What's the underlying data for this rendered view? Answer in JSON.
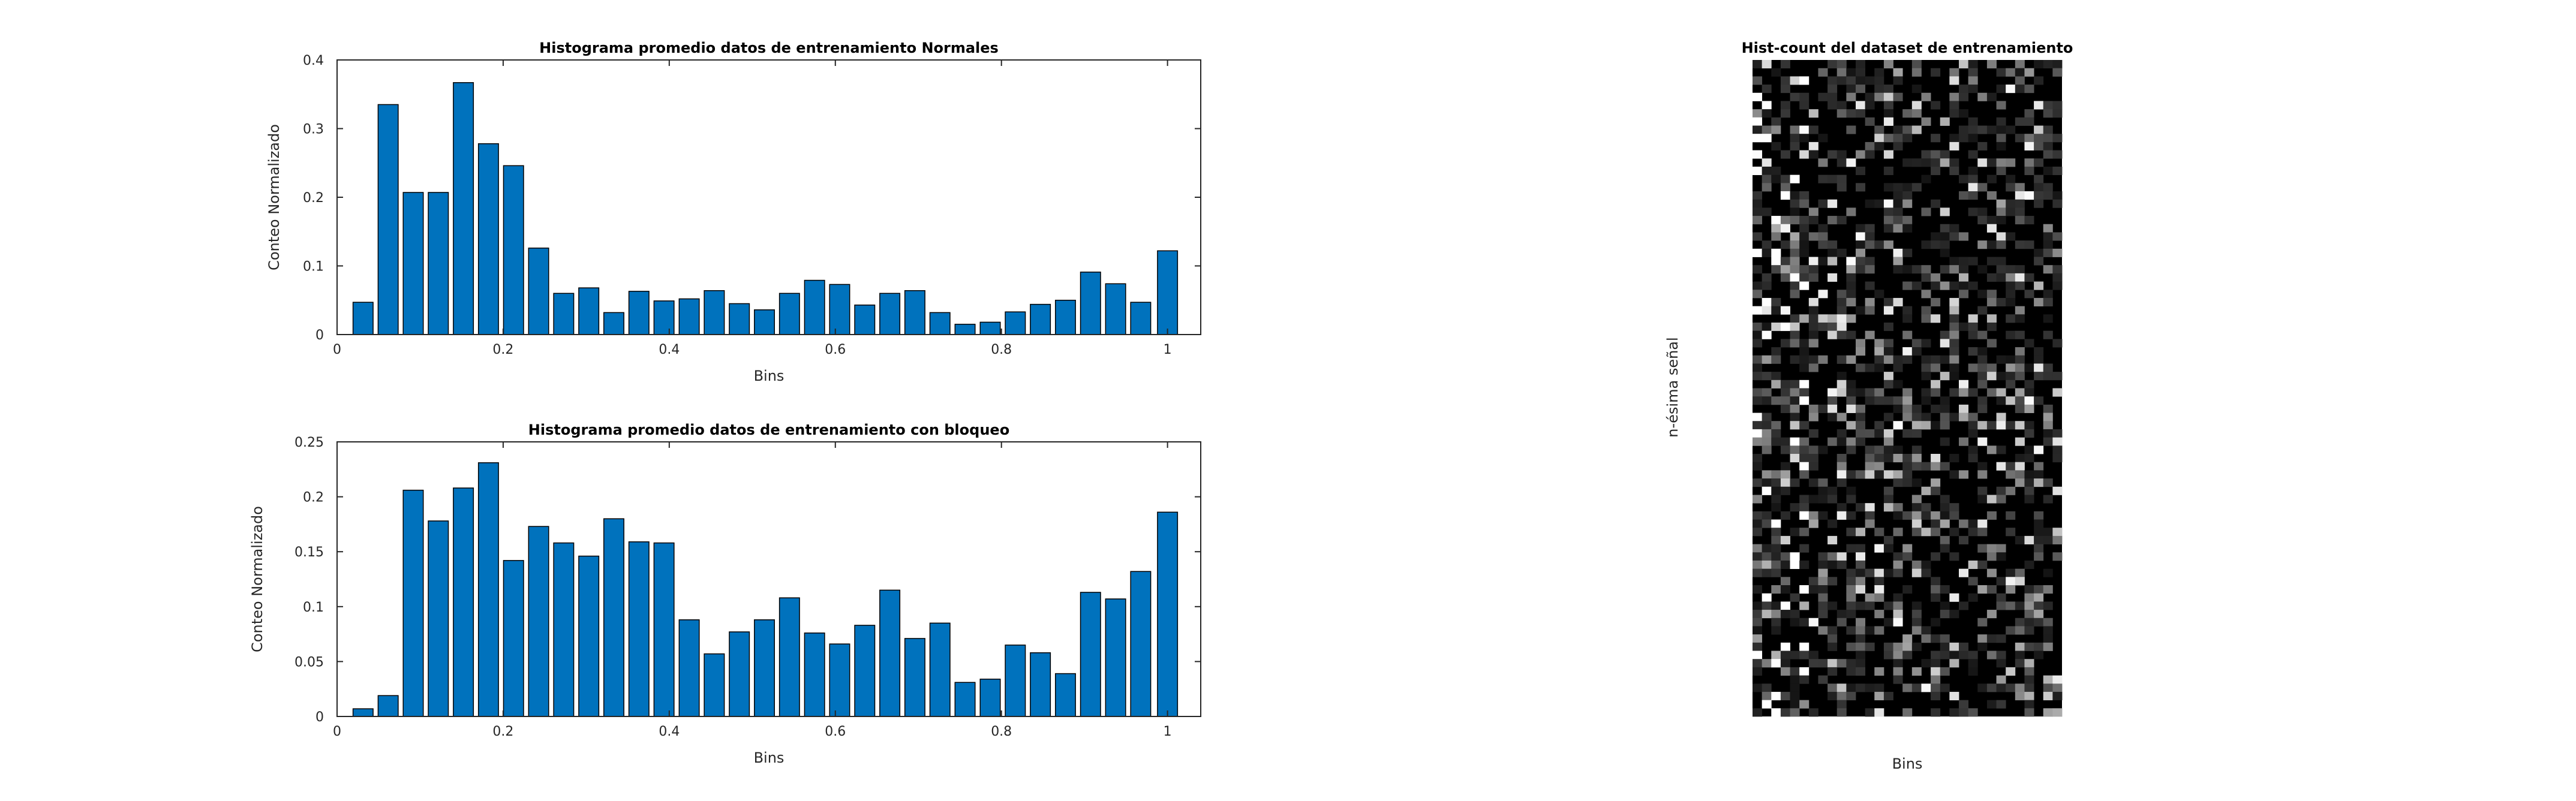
{
  "colors": {
    "bar": "#0072BD",
    "bar_edge": "#000000",
    "axes": "#262626"
  },
  "chart_data": [
    {
      "type": "bar",
      "title": "Histograma promedio datos de entrenamiento Normales",
      "xlabel": "Bins",
      "ylabel": "Conteo Normalizado",
      "xlim": [
        0,
        1.04
      ],
      "ylim": [
        0,
        0.4
      ],
      "xticks": [
        0,
        0.2,
        0.4,
        0.6,
        0.8,
        1
      ],
      "xtick_labels": [
        "0",
        "0.2",
        "0.4",
        "0.6",
        "0.8",
        "1"
      ],
      "yticks": [
        0,
        0.1,
        0.2,
        0.3,
        0.4
      ],
      "ytick_labels": [
        "0",
        "0.1",
        "0.2",
        "0.3",
        "0.4"
      ],
      "x": [
        0.0313,
        0.0615,
        0.0917,
        0.1219,
        0.1521,
        0.1823,
        0.2125,
        0.2427,
        0.2729,
        0.3031,
        0.3333,
        0.3635,
        0.3937,
        0.424,
        0.4542,
        0.4844,
        0.5146,
        0.5448,
        0.575,
        0.6052,
        0.6354,
        0.6656,
        0.6958,
        0.726,
        0.7562,
        0.7865,
        0.8167,
        0.8469,
        0.8771,
        0.9073,
        0.9375,
        0.9677,
        1.0
      ],
      "values": [
        0.047,
        0.335,
        0.207,
        0.207,
        0.367,
        0.278,
        0.246,
        0.126,
        0.06,
        0.068,
        0.032,
        0.063,
        0.049,
        0.052,
        0.064,
        0.045,
        0.036,
        0.06,
        0.079,
        0.073,
        0.043,
        0.06,
        0.064,
        0.032,
        0.015,
        0.018,
        0.033,
        0.044,
        0.05,
        0.091,
        0.074,
        0.047,
        0.122
      ]
    },
    {
      "type": "bar",
      "title": "Histograma promedio datos de entrenamiento con bloqueo",
      "xlabel": "Bins",
      "ylabel": "Conteo Normalizado",
      "xlim": [
        0,
        1.04
      ],
      "ylim": [
        0,
        0.25
      ],
      "xticks": [
        0,
        0.2,
        0.4,
        0.6,
        0.8,
        1
      ],
      "xtick_labels": [
        "0",
        "0.2",
        "0.4",
        "0.6",
        "0.8",
        "1"
      ],
      "yticks": [
        0,
        0.05,
        0.1,
        0.15,
        0.2,
        0.25
      ],
      "ytick_labels": [
        "0",
        "0.05",
        "0.1",
        "0.15",
        "0.2",
        "0.25"
      ],
      "x": [
        0.0313,
        0.0615,
        0.0917,
        0.1219,
        0.1521,
        0.1823,
        0.2125,
        0.2427,
        0.2729,
        0.3031,
        0.3333,
        0.3635,
        0.3937,
        0.424,
        0.4542,
        0.4844,
        0.5146,
        0.5448,
        0.575,
        0.6052,
        0.6354,
        0.6656,
        0.6958,
        0.726,
        0.7562,
        0.7865,
        0.8167,
        0.8469,
        0.8771,
        0.9073,
        0.9375,
        0.9677,
        1.0
      ],
      "values": [
        0.007,
        0.019,
        0.206,
        0.178,
        0.208,
        0.231,
        0.142,
        0.173,
        0.158,
        0.146,
        0.18,
        0.159,
        0.158,
        0.088,
        0.057,
        0.077,
        0.088,
        0.108,
        0.076,
        0.066,
        0.083,
        0.115,
        0.071,
        0.085,
        0.031,
        0.034,
        0.065,
        0.058,
        0.039,
        0.113,
        0.107,
        0.132,
        0.186
      ]
    },
    {
      "type": "heatmap",
      "title": "Hist-count del dataset de entrenamiento",
      "xlabel": "Bins",
      "ylabel": "n-ésima señal",
      "colormap": "gray",
      "columns": 33,
      "rows": 80,
      "note": "Grayscale intensity matrix; mostly dark with sparse bright cells, brighter concentrations in the leftmost columns."
    }
  ]
}
